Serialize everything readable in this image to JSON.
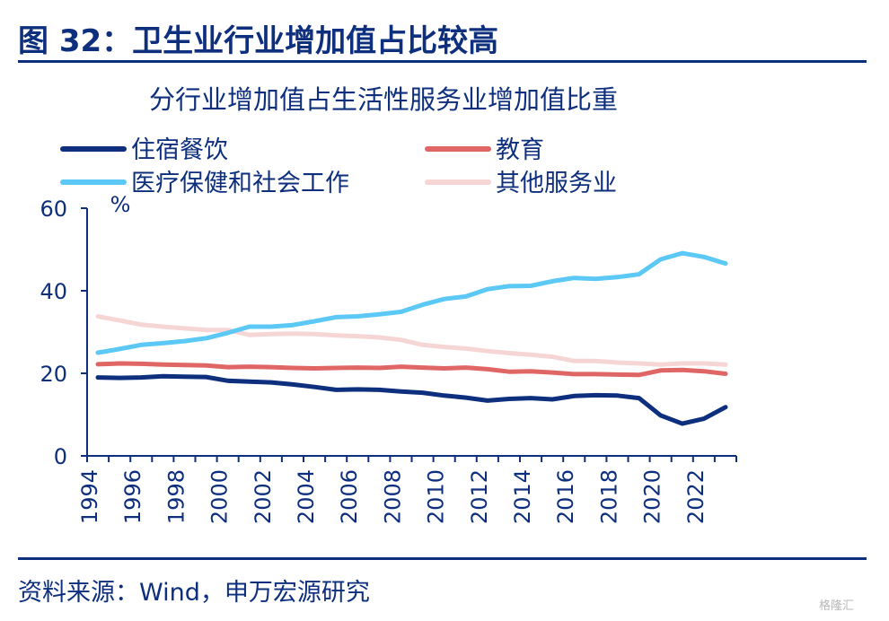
{
  "figure": {
    "label": "图 32：卫生业行业增加值占比较高",
    "source": "资料来源：Wind，申万宏源研究",
    "watermark": "格隆汇"
  },
  "chart_data": {
    "type": "line",
    "title": "分行业增加值占生活性服务业增加值比重",
    "ylabel": "%",
    "xlabel": "",
    "ylim": [
      0,
      60
    ],
    "yticks": [
      0,
      20,
      40,
      60
    ],
    "xlim": [
      1994,
      2023
    ],
    "xticks": [
      "1994",
      "1996",
      "1998",
      "2000",
      "2002",
      "2004",
      "2006",
      "2008",
      "2010",
      "2012",
      "2014",
      "2016",
      "2018",
      "2020",
      "2022"
    ],
    "x": [
      1994,
      1995,
      1996,
      1997,
      1998,
      1999,
      2000,
      2001,
      2002,
      2003,
      2004,
      2005,
      2006,
      2007,
      2008,
      2009,
      2010,
      2011,
      2012,
      2013,
      2014,
      2015,
      2016,
      2017,
      2018,
      2019,
      2020,
      2021,
      2022,
      2023
    ],
    "series": [
      {
        "name": "住宿餐饮",
        "color": "#0d2f7e",
        "values": [
          19.0,
          18.9,
          19.0,
          19.3,
          19.2,
          19.1,
          18.2,
          18.0,
          17.8,
          17.3,
          16.7,
          16.0,
          16.1,
          16.0,
          15.6,
          15.3,
          14.6,
          14.1,
          13.4,
          13.8,
          14.0,
          13.7,
          14.5,
          14.7,
          14.6,
          14.0,
          9.8,
          7.8,
          9.0,
          11.8
        ]
      },
      {
        "name": "教育",
        "color": "#e06666",
        "values": [
          22.2,
          22.4,
          22.3,
          22.1,
          22.0,
          21.9,
          21.5,
          21.6,
          21.5,
          21.3,
          21.2,
          21.3,
          21.4,
          21.3,
          21.6,
          21.4,
          21.2,
          21.4,
          21.0,
          20.4,
          20.5,
          20.2,
          19.8,
          19.8,
          19.7,
          19.6,
          20.7,
          20.8,
          20.5,
          19.9
        ]
      },
      {
        "name": "医疗保健和社会工作",
        "color": "#5bc8f5",
        "values": [
          25.0,
          25.9,
          26.9,
          27.3,
          27.8,
          28.5,
          29.8,
          31.3,
          31.3,
          31.7,
          32.6,
          33.6,
          33.8,
          34.3,
          34.9,
          36.6,
          38.0,
          38.6,
          40.4,
          41.1,
          41.2,
          42.3,
          43.1,
          42.9,
          43.3,
          44.0,
          47.6,
          49.1,
          48.2,
          46.6
        ]
      },
      {
        "name": "其他服务业",
        "color": "#f6d5d5",
        "values": [
          33.8,
          32.8,
          31.8,
          31.3,
          30.9,
          30.5,
          30.5,
          29.3,
          29.5,
          29.6,
          29.5,
          29.2,
          29.0,
          28.7,
          28.1,
          26.9,
          26.4,
          26.0,
          25.4,
          24.9,
          24.5,
          24.0,
          23.0,
          23.0,
          22.6,
          22.4,
          22.1,
          22.4,
          22.4,
          22.1
        ]
      }
    ],
    "legend_position": "top"
  }
}
